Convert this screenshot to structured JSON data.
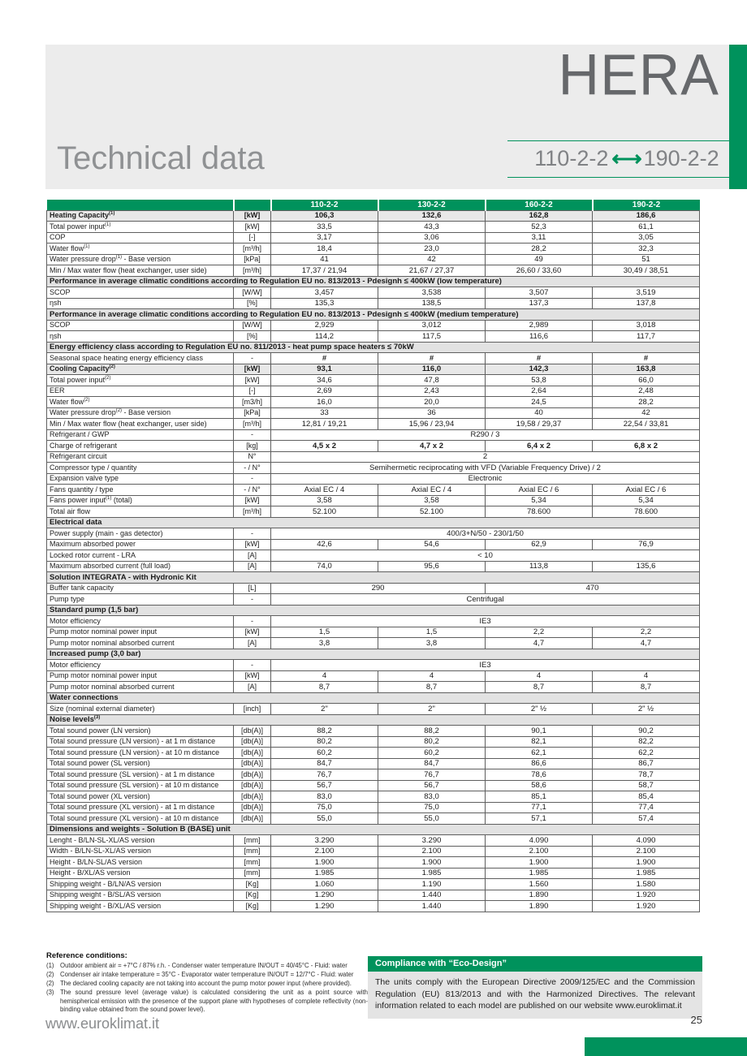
{
  "colors": {
    "green": "#00925c",
    "band_gray": "#ececec",
    "section_gray": "#e2e2e2",
    "highlight_gray": "#e8e8e8"
  },
  "header": {
    "product": "HERA",
    "title": "Technical data",
    "range_from": "110-2-2",
    "range_to": "190-2-2",
    "range_arrow_icon": "double-arrow"
  },
  "table": {
    "models": [
      "110-2-2",
      "130-2-2",
      "160-2-2",
      "190-2-2"
    ],
    "rows": [
      {
        "type": "data",
        "label": "Heating Capacity",
        "sup": "(1)",
        "unit": "[kW]",
        "values": [
          "106,3",
          "132,6",
          "162,8",
          "186,6"
        ],
        "bold": true,
        "shade": true
      },
      {
        "type": "data",
        "label": "Total power input",
        "sup": "(1)",
        "unit": "[kW]",
        "values": [
          "33,5",
          "43,3",
          "52,3",
          "61,1"
        ]
      },
      {
        "type": "data",
        "label": "COP",
        "unit": "[-]",
        "values": [
          "3,17",
          "3,06",
          "3,11",
          "3,05"
        ]
      },
      {
        "type": "data",
        "label": "Water flow",
        "sup": "(1)",
        "unit": "[m³/h]",
        "values": [
          "18,4",
          "23,0",
          "28,2",
          "32,3"
        ]
      },
      {
        "type": "data",
        "label": "Water pressure drop",
        "sup": "(1)",
        "label2": " - Base version",
        "unit": "[kPa]",
        "values": [
          "41",
          "42",
          "49",
          "51"
        ]
      },
      {
        "type": "data",
        "label": "Min / Max water flow (heat exchanger, user side)",
        "unit": "[m³/h]",
        "values": [
          "17,37 / 21,94",
          "21,67 / 27,37",
          "26,60 / 33,60",
          "30,49 / 38,51"
        ]
      },
      {
        "type": "section",
        "label": "Performance in average climatic conditions according to Regulation EU no. 813/2013 - Pdesignh ≤ 400kW (low temperature)"
      },
      {
        "type": "data",
        "label": "SCOP",
        "unit": "[W/W]",
        "values": [
          "3,457",
          "3,538",
          "3,507",
          "3,519"
        ]
      },
      {
        "type": "data",
        "label": "ηsh",
        "unit": "[%]",
        "values": [
          "135,3",
          "138,5",
          "137,3",
          "137,8"
        ]
      },
      {
        "type": "section",
        "label": "Performance in average climatic conditions according to Regulation EU no. 813/2013 - Pdesignh ≤ 400kW (medium temperature)"
      },
      {
        "type": "data",
        "label": "SCOP",
        "unit": "[W/W]",
        "values": [
          "2,929",
          "3,012",
          "2,989",
          "3,018"
        ]
      },
      {
        "type": "data",
        "label": "ηsh",
        "unit": "[%]",
        "values": [
          "114,2",
          "117,5",
          "116,6",
          "117,7"
        ]
      },
      {
        "type": "section",
        "label": "Energy efficiency class according to Regulation EU no. 811/2013 - heat pump space heaters ≤ 70kW"
      },
      {
        "type": "data",
        "label": "Seasonal space heating energy efficiency class",
        "unit": "-",
        "values": [
          "#",
          "#",
          "#",
          "#"
        ],
        "bold_values": true
      },
      {
        "type": "data",
        "label": "Cooling Capacity",
        "sup": "(2)",
        "unit": "[kW]",
        "values": [
          "93,1",
          "116,0",
          "142,3",
          "163,8"
        ],
        "bold": true,
        "shade": true
      },
      {
        "type": "data",
        "label": "Total power input",
        "sup": "(2)",
        "unit": "[kW]",
        "values": [
          "34,6",
          "47,8",
          "53,8",
          "66,0"
        ]
      },
      {
        "type": "data",
        "label": "EER",
        "unit": "[-]",
        "values": [
          "2,69",
          "2,43",
          "2,64",
          "2,48"
        ]
      },
      {
        "type": "data",
        "label": "Water flow",
        "sup": "(2)",
        "unit": "[m3/h]",
        "values": [
          "16,0",
          "20,0",
          "24,5",
          "28,2"
        ]
      },
      {
        "type": "data",
        "label": "Water pressure drop",
        "sup": "(2)",
        "label2": " - Base version",
        "unit": "[kPa]",
        "values": [
          "33",
          "36",
          "40",
          "42"
        ]
      },
      {
        "type": "data",
        "label": "Min / Max water flow (heat exchanger, user side)",
        "unit": "[m³/h]",
        "values": [
          "12,81 / 19,21",
          "15,96 / 23,94",
          "19,58 / 29,37",
          "22,54 / 33,81"
        ]
      },
      {
        "type": "data",
        "label": "Refrigerant / GWP",
        "unit": "-",
        "values": [
          [
            "R290 / 3",
            4
          ]
        ]
      },
      {
        "type": "data",
        "label": "Charge of refrigerant",
        "unit": "[kg]",
        "values": [
          "4,5 x 2",
          "4,7 x 2",
          "6,4 x 2",
          "6,8 x 2"
        ],
        "bold_values": true
      },
      {
        "type": "data",
        "label": "Refrigerant circuit",
        "unit": "N°",
        "values": [
          [
            "2",
            4
          ]
        ]
      },
      {
        "type": "data",
        "label": "Compressor type / quantity",
        "unit": "- / N°",
        "values": [
          [
            "Semihermetic reciprocating with VFD (Variable Frequency Drive) / 2",
            4
          ]
        ]
      },
      {
        "type": "data",
        "label": "Expansion valve type",
        "unit": "-",
        "values": [
          [
            "Electronic",
            4
          ]
        ]
      },
      {
        "type": "data",
        "label": "Fans quantity / type",
        "unit": "- / N°",
        "values": [
          "Axial EC / 4",
          "Axial EC / 4",
          "Axial EC / 6",
          "Axial EC / 6"
        ]
      },
      {
        "type": "data",
        "label": "Fans power input",
        "sup": "(1)",
        "label2": " (total)",
        "unit": "[kW]",
        "values": [
          "3,58",
          "3,58",
          "5,34",
          "5,34"
        ]
      },
      {
        "type": "data",
        "label": "Total air flow",
        "unit": "[m³/h]",
        "values": [
          "52.100",
          "52.100",
          "78.600",
          "78.600"
        ]
      },
      {
        "type": "section",
        "label": "Electrical data"
      },
      {
        "type": "data",
        "label": "Power supply (main - gas detector)",
        "unit": "-",
        "values": [
          [
            "400/3+N/50 - 230/1/50",
            4
          ]
        ]
      },
      {
        "type": "data",
        "label": "Maximum absorbed power",
        "unit": "[kW]",
        "values": [
          "42,6",
          "54,6",
          "62,9",
          "76,9"
        ]
      },
      {
        "type": "data",
        "label": "Locked rotor current - LRA",
        "unit": "[A]",
        "values": [
          [
            "< 10",
            4
          ]
        ]
      },
      {
        "type": "data",
        "label": "Maximum absorbed current (full load)",
        "unit": "[A]",
        "values": [
          "74,0",
          "95,6",
          "113,8",
          "135,6"
        ]
      },
      {
        "type": "section",
        "label": "Solution INTEGRATA - with Hydronic Kit"
      },
      {
        "type": "data",
        "label": "Buffer tank capacity",
        "unit": "[L]",
        "values": [
          [
            "290",
            2
          ],
          [
            "470",
            2
          ]
        ]
      },
      {
        "type": "data",
        "label": "Pump type",
        "unit": "-",
        "values": [
          [
            "Centrifugal",
            4
          ]
        ]
      },
      {
        "type": "section",
        "label": "Standard pump (1,5 bar)"
      },
      {
        "type": "data",
        "label": "Motor efficiency",
        "unit": "-",
        "values": [
          [
            "IE3",
            4
          ]
        ]
      },
      {
        "type": "data",
        "label": "Pump motor nominal power input",
        "unit": "[kW]",
        "values": [
          "1,5",
          "1,5",
          "2,2",
          "2,2"
        ]
      },
      {
        "type": "data",
        "label": "Pump motor nominal absorbed current",
        "unit": "[A]",
        "values": [
          "3,8",
          "3,8",
          "4,7",
          "4,7"
        ]
      },
      {
        "type": "section",
        "label": "Increased pump (3,0 bar)"
      },
      {
        "type": "data",
        "label": "Motor efficiency",
        "unit": "-",
        "values": [
          [
            "IE3",
            4
          ]
        ]
      },
      {
        "type": "data",
        "label": "Pump motor nominal power input",
        "unit": "[kW]",
        "values": [
          "4",
          "4",
          "4",
          "4"
        ]
      },
      {
        "type": "data",
        "label": "Pump motor nominal absorbed current",
        "unit": "[A]",
        "values": [
          "8,7",
          "8,7",
          "8,7",
          "8,7"
        ]
      },
      {
        "type": "section",
        "label": "Water connections"
      },
      {
        "type": "data",
        "label": "Size (nominal external diameter)",
        "unit": "[inch]",
        "values": [
          "2\"",
          "2\"",
          "2\" ½",
          "2\" ½"
        ]
      },
      {
        "type": "section",
        "label": "Noise levels",
        "sup": "(3)"
      },
      {
        "type": "data",
        "label": "Total sound power (LN version)",
        "unit": "[db(A)]",
        "values": [
          "88,2",
          "88,2",
          "90,1",
          "90,2"
        ]
      },
      {
        "type": "data",
        "label": "Total sound pressure (LN version) - at 1 m distance",
        "unit": "[db(A)]",
        "values": [
          "80,2",
          "80,2",
          "82,1",
          "82,2"
        ]
      },
      {
        "type": "data",
        "label": "Total sound pressure (LN version) - at 10 m distance",
        "unit": "[db(A)]",
        "values": [
          "60,2",
          "60,2",
          "62,1",
          "62,2"
        ]
      },
      {
        "type": "data",
        "label": "Total sound power (SL version)",
        "unit": "[db(A)]",
        "values": [
          "84,7",
          "84,7",
          "86,6",
          "86,7"
        ]
      },
      {
        "type": "data",
        "label": "Total sound pressure (SL version) - at 1 m distance",
        "unit": "[db(A)]",
        "values": [
          "76,7",
          "76,7",
          "78,6",
          "78,7"
        ]
      },
      {
        "type": "data",
        "label": "Total sound pressure (SL version) - at 10 m distance",
        "unit": "[db(A)]",
        "values": [
          "56,7",
          "56,7",
          "58,6",
          "58,7"
        ]
      },
      {
        "type": "data",
        "label": "Total sound power (XL version)",
        "unit": "[db(A)]",
        "values": [
          "83,0",
          "83,0",
          "85,1",
          "85,4"
        ]
      },
      {
        "type": "data",
        "label": "Total sound pressure (XL version) - at 1 m distance",
        "unit": "[db(A)]",
        "values": [
          "75,0",
          "75,0",
          "77,1",
          "77,4"
        ]
      },
      {
        "type": "data",
        "label": "Total sound pressure (XL version) - at 10 m distance",
        "unit": "[db(A)]",
        "values": [
          "55,0",
          "55,0",
          "57,1",
          "57,4"
        ]
      },
      {
        "type": "section",
        "label": "Dimensions and weights - Solution B (BASE) unit"
      },
      {
        "type": "data",
        "label": "Lenght - B/LN-SL-XL/AS version",
        "unit": "[mm]",
        "values": [
          "3.290",
          "3.290",
          "4.090",
          "4.090"
        ]
      },
      {
        "type": "data",
        "label": "Width - B/LN-SL-XL/AS version",
        "unit": "[mm]",
        "values": [
          "2.100",
          "2.100",
          "2.100",
          "2.100"
        ]
      },
      {
        "type": "data",
        "label": "Height - B/LN-SL/AS version",
        "unit": "[mm]",
        "values": [
          "1.900",
          "1.900",
          "1.900",
          "1.900"
        ]
      },
      {
        "type": "data",
        "label": "Height - B/XL/AS version",
        "unit": "[mm]",
        "values": [
          "1.985",
          "1.985",
          "1.985",
          "1.985"
        ]
      },
      {
        "type": "data",
        "label": "Shipping weight - B/LN/AS version",
        "unit": "[Kg]",
        "values": [
          "1.060",
          "1.190",
          "1.560",
          "1.580"
        ]
      },
      {
        "type": "data",
        "label": "Shipping weight - B/SL/AS version",
        "unit": "[Kg]",
        "values": [
          "1.290",
          "1.440",
          "1.890",
          "1.920"
        ]
      },
      {
        "type": "data",
        "label": "Shipping weight - B/XL/AS version",
        "unit": "[Kg]",
        "values": [
          "1.290",
          "1.440",
          "1.890",
          "1.920"
        ]
      }
    ]
  },
  "reference": {
    "heading": "Reference conditions:",
    "notes": [
      {
        "n": "(1)",
        "text": "Outdoor ambient air = +7°C / 87% r.h. - Condenser water temperature IN/OUT = 40/45°C - Fluid: water"
      },
      {
        "n": "(2)",
        "text": "Condenser air intake temperature = 35°C - Evaporator water temperature IN/OUT = 12/7°C - Fluid: water"
      },
      {
        "n": "(2)",
        "text": "The declared cooling capacity are not taking into account the pump motor power input (where provided)."
      },
      {
        "n": "(3)",
        "text": "The sound pressure level (average value) is calculated considering the unit as a point source with hemispherical emission with the presence of the support plane with hypotheses of complete reflectivity (non-binding value obtained from the sound power level)."
      }
    ]
  },
  "compliance": {
    "title": "Compliance with “Eco-Design”",
    "body": "The units comply with the European Directive 2009/125/EC and the Commission Regulation (EU) 813/2013 and with the Harmonized Directives. The relevant information related to each model are published on our website www.euroklimat.it"
  },
  "footer": {
    "website": "www.euroklimat.it",
    "page_number": "25"
  }
}
